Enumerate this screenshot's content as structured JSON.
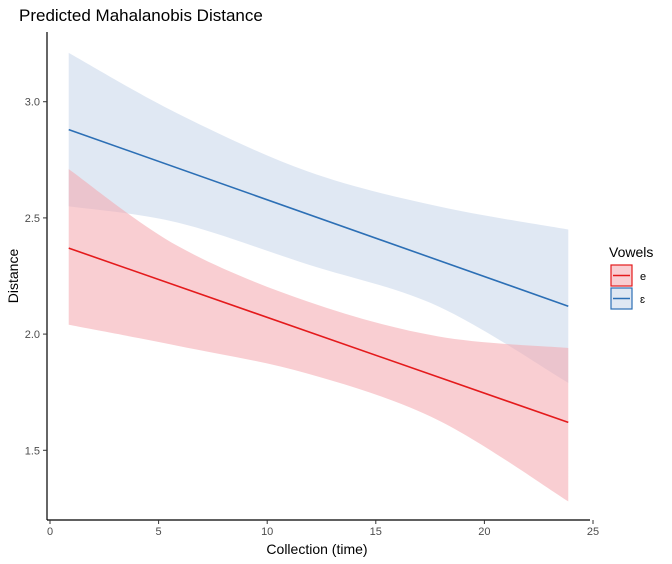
{
  "chart_data": {
    "type": "line",
    "title": "Predicted Mahalanobis Distance",
    "xlabel": "Collection (time)",
    "ylabel": "Distance",
    "xlim": [
      0,
      25
    ],
    "ylim": [
      1.2,
      3.3
    ],
    "x_ticks": [
      0,
      5,
      10,
      15,
      20,
      25
    ],
    "y_ticks": [
      1.5,
      2.0,
      2.5,
      3.0
    ],
    "x_tick_labels": [
      "0",
      "5",
      "10",
      "15",
      "20",
      "25"
    ],
    "y_tick_labels": [
      "1.5",
      "2.0",
      "2.5",
      "3.0"
    ],
    "grid": false,
    "legend": {
      "title": "Vowels",
      "position": "right"
    },
    "series": [
      {
        "name": "e",
        "color": "#e41a1c",
        "fill_color": "#f4a6ad",
        "x": [
          1,
          24
        ],
        "y": [
          2.37,
          1.62
        ],
        "band_x": [
          1,
          6,
          12,
          18,
          24
        ],
        "band_lower": [
          2.04,
          1.95,
          1.83,
          1.63,
          1.28
        ],
        "band_upper": [
          2.71,
          2.38,
          2.14,
          1.99,
          1.94
        ]
      },
      {
        "name": "ɛ",
        "color": "#2c6fb5",
        "fill_color": "#c6d6e9",
        "x": [
          1,
          24
        ],
        "y": [
          2.88,
          2.12
        ],
        "band_x": [
          1,
          6,
          12,
          18,
          24
        ],
        "band_lower": [
          2.55,
          2.48,
          2.3,
          2.12,
          1.79
        ],
        "band_upper": [
          3.21,
          2.95,
          2.7,
          2.55,
          2.45
        ]
      }
    ]
  }
}
